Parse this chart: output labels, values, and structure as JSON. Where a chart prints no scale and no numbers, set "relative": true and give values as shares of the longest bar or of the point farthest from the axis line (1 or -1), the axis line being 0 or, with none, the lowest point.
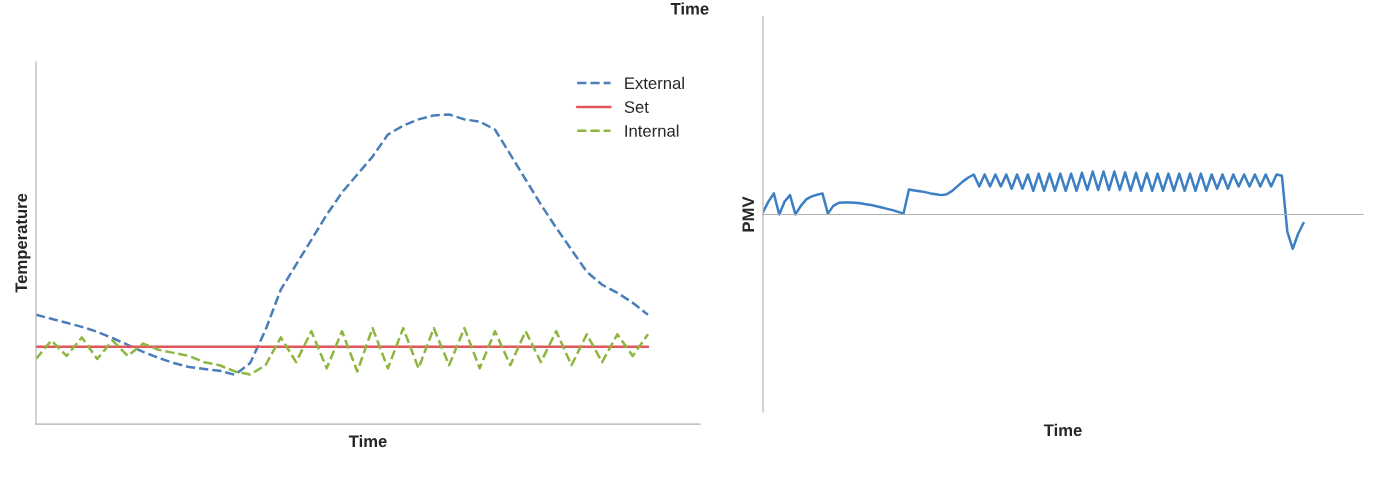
{
  "chart_data": [
    {
      "type": "line",
      "relative": true,
      "xlabel": "Time",
      "ylabel": "Temperature",
      "legend": "top right",
      "annotations": [
        "Time"
      ],
      "categories": [
        null,
        null,
        null,
        null,
        null,
        null,
        null,
        null,
        null,
        null,
        null,
        null,
        null,
        null,
        null,
        null,
        null,
        null,
        null,
        null,
        null,
        null,
        null,
        null,
        null,
        null,
        null,
        null,
        null,
        null,
        null,
        null,
        null,
        null,
        null,
        null,
        null,
        null,
        null,
        null,
        null
      ],
      "series": [
        {
          "name": "External",
          "color": "#4a7ebb",
          "line_style": "dashed",
          "values": [
            0.353,
            0.34,
            0.327,
            0.314,
            0.298,
            0.278,
            0.256,
            0.233,
            0.214,
            0.197,
            0.184,
            0.178,
            0.172,
            0.159,
            0.197,
            0.304,
            0.434,
            0.515,
            0.595,
            0.676,
            0.748,
            0.806,
            0.864,
            0.935,
            0.964,
            0.984,
            0.997,
            1,
            0.984,
            0.977,
            0.951,
            0.871,
            0.79,
            0.709,
            0.634,
            0.563,
            0.492,
            0.45,
            0.424,
            0.392,
            0.353
          ]
        },
        {
          "name": "Set",
          "color": "#e0565b",
          "line_style": "solid",
          "values": [
            0.25,
            0.25,
            0.25,
            0.25,
            0.25,
            0.25,
            0.25,
            0.25,
            0.25,
            0.25,
            0.25,
            0.25,
            0.25,
            0.25,
            0.25,
            0.25,
            0.25,
            0.25,
            0.25,
            0.25,
            0.25,
            0.25,
            0.25,
            0.25,
            0.25,
            0.25,
            0.25,
            0.25,
            0.25,
            0.25,
            0.25,
            0.25,
            0.25,
            0.25,
            0.25,
            0.25,
            0.25,
            0.25,
            0.25,
            0.25,
            0.25
          ]
        },
        {
          "name": "Internal",
          "color": "#8db640",
          "line_style": "dashed",
          "values": [
            0.21,
            0.27,
            0.22,
            0.28,
            0.21,
            0.27,
            0.22,
            0.26,
            0.24,
            0.23,
            0.22,
            0.2,
            0.19,
            0.17,
            0.16,
            0.19,
            0.28,
            0.2,
            0.3,
            0.18,
            0.3,
            0.17,
            0.31,
            0.18,
            0.31,
            0.18,
            0.31,
            0.19,
            0.31,
            0.18,
            0.3,
            0.19,
            0.3,
            0.2,
            0.3,
            0.19,
            0.29,
            0.2,
            0.29,
            0.22,
            0.29
          ]
        }
      ]
    },
    {
      "type": "line",
      "relative": true,
      "xlabel": "Time",
      "ylabel": "PMV",
      "categories": [
        null,
        null,
        null,
        null,
        null,
        null,
        null,
        null,
        null,
        null,
        null,
        null,
        null,
        null,
        null,
        null,
        null,
        null,
        null,
        null,
        null,
        null,
        null,
        null,
        null,
        null,
        null,
        null,
        null,
        null,
        null,
        null,
        null,
        null,
        null,
        null,
        null,
        null,
        null,
        null,
        null,
        null,
        null,
        null,
        null,
        null,
        null,
        null,
        null,
        null,
        null,
        null,
        null,
        null,
        null,
        null,
        null,
        null,
        null,
        null,
        null,
        null,
        null,
        null,
        null,
        null,
        null,
        null,
        null,
        null,
        null,
        null,
        null,
        null,
        null,
        null,
        null,
        null,
        null,
        null,
        null,
        null,
        null,
        null,
        null,
        null,
        null,
        null,
        null,
        null,
        null,
        null,
        null,
        null,
        null,
        null,
        null,
        null,
        null,
        null,
        null
      ],
      "series": [
        {
          "color": "#3c7fc4",
          "line_style": "solid",
          "values": [
            0.05,
            0.3,
            0.49,
            0.0,
            0.3,
            0.45,
            0.0,
            0.2,
            0.35,
            0.42,
            0.46,
            0.49,
            0.02,
            0.2,
            0.27,
            0.28,
            0.28,
            0.27,
            0.26,
            0.24,
            0.22,
            0.19,
            0.16,
            0.13,
            0.1,
            0.06,
            0.02,
            0.58,
            0.56,
            0.54,
            0.52,
            0.49,
            0.47,
            0.45,
            0.47,
            0.55,
            0.66,
            0.77,
            0.86,
            0.93,
            0.65,
            0.93,
            0.65,
            0.93,
            0.65,
            0.93,
            0.6,
            0.93,
            0.6,
            0.93,
            0.55,
            0.95,
            0.55,
            0.95,
            0.55,
            0.95,
            0.55,
            0.95,
            0.55,
            0.97,
            0.57,
            1,
            0.57,
            1,
            0.57,
            1,
            0.57,
            0.98,
            0.55,
            0.97,
            0.55,
            0.96,
            0.55,
            0.95,
            0.55,
            0.95,
            0.55,
            0.95,
            0.55,
            0.95,
            0.55,
            0.95,
            0.55,
            0.93,
            0.6,
            0.93,
            0.6,
            0.93,
            0.65,
            0.93,
            0.65,
            0.93,
            0.65,
            0.93,
            0.65,
            0.93,
            0.9,
            -0.4,
            -0.8,
            -0.45,
            -0.2
          ]
        }
      ]
    }
  ]
}
